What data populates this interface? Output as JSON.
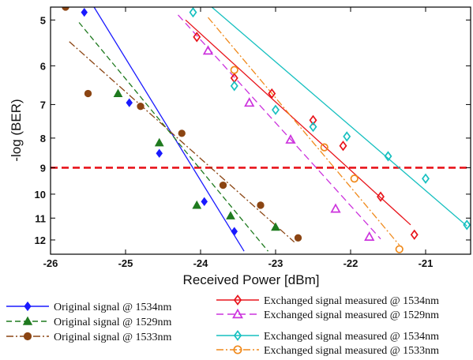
{
  "chart_data": {
    "type": "scatter",
    "xlabel": "Received Power [dBm]",
    "ylabel": "-log (BER)",
    "xlim": [
      -26,
      -20.4
    ],
    "ylim": [
      4.75,
      12.7
    ],
    "y_scale": "log",
    "y_reversed": true,
    "x_ticks": [
      -26,
      -25,
      -24,
      -23,
      -22,
      -21
    ],
    "y_ticks": [
      5,
      6,
      7,
      8,
      9,
      10,
      11,
      12
    ],
    "x_tick_labels": [
      "-26",
      "-25",
      "-24",
      "-23",
      "-22",
      "-21"
    ],
    "y_tick_labels": [
      "5",
      "6",
      "7",
      "8",
      "9",
      "10",
      "11",
      "12"
    ],
    "grid": false,
    "legend_position": "bottom",
    "threshold": {
      "y": 9,
      "color": "#e8141b"
    },
    "series": [
      {
        "name": "Original signal @ 1534nm",
        "marker": "diamond",
        "filled": true,
        "color": "#1a1aff",
        "line_color": "#1a1aff",
        "dash": "",
        "points": [
          [
            -25.55,
            4.85
          ],
          [
            -24.95,
            6.95
          ],
          [
            -24.55,
            8.5
          ],
          [
            -23.95,
            10.3
          ],
          [
            -23.55,
            11.6
          ]
        ],
        "fit": [
          [
            -25.42,
            4.75
          ],
          [
            -23.42,
            12.55
          ]
        ]
      },
      {
        "name": "Original signal @ 1529nm",
        "marker": "triangle",
        "filled": true,
        "color": "#1f7a1f",
        "line_color": "#1f7a1f",
        "dash": "7,4",
        "points": [
          [
            -25.1,
            6.7
          ],
          [
            -24.55,
            8.15
          ],
          [
            -24.05,
            10.45
          ],
          [
            -23.6,
            10.9
          ],
          [
            -23.0,
            11.4
          ]
        ],
        "fit": [
          [
            -25.62,
            5.05
          ],
          [
            -23.1,
            12.55
          ]
        ]
      },
      {
        "name": "Original signal @ 1533nm",
        "marker": "circle",
        "filled": true,
        "color": "#8b4513",
        "line_color": "#8b4513",
        "dash": "9,3,2,3",
        "points": [
          [
            -25.8,
            4.75
          ],
          [
            -25.5,
            6.7
          ],
          [
            -24.8,
            7.05
          ],
          [
            -24.25,
            7.85
          ],
          [
            -23.7,
            9.65
          ],
          [
            -23.2,
            10.45
          ],
          [
            -22.7,
            11.9
          ]
        ],
        "fit": [
          [
            -25.75,
            5.45
          ],
          [
            -22.75,
            12.1
          ]
        ]
      },
      {
        "name": "Exchanged signal measured @ 1534nm",
        "marker": "diamond",
        "filled": false,
        "color": "#e8141b",
        "line_color": "#e8141b",
        "dash": "",
        "points": [
          [
            -24.05,
            5.35
          ],
          [
            -23.55,
            6.3
          ],
          [
            -23.05,
            6.7
          ],
          [
            -22.5,
            7.45
          ],
          [
            -22.1,
            8.25
          ],
          [
            -21.6,
            10.1
          ],
          [
            -21.15,
            11.75
          ]
        ],
        "fit": [
          [
            -24.2,
            5.0
          ],
          [
            -21.2,
            11.3
          ]
        ]
      },
      {
        "name": "Exchanged signal measured @ 1529nm",
        "marker": "triangle",
        "filled": false,
        "color": "#cc33dd",
        "line_color": "#cc33dd",
        "dash": "9,5",
        "points": [
          [
            -23.9,
            5.65
          ],
          [
            -23.35,
            6.95
          ],
          [
            -22.8,
            8.05
          ],
          [
            -22.2,
            10.6
          ],
          [
            -21.75,
            11.85
          ]
        ],
        "fit": [
          [
            -24.3,
            4.9
          ],
          [
            -21.6,
            11.95
          ]
        ]
      },
      {
        "name": "Exchanged signal measured @ 1534nm",
        "marker": "diamond",
        "filled": false,
        "color": "#17c0c0",
        "line_color": "#17c0c0",
        "dash": "",
        "points": [
          [
            -24.1,
            4.85
          ],
          [
            -23.55,
            6.5
          ],
          [
            -23.0,
            7.15
          ],
          [
            -22.5,
            7.65
          ],
          [
            -22.05,
            7.95
          ],
          [
            -21.5,
            8.6
          ],
          [
            -21.0,
            9.4
          ],
          [
            -20.45,
            11.3
          ]
        ],
        "fit": [
          [
            -23.85,
            4.75
          ],
          [
            -20.45,
            11.35
          ]
        ]
      },
      {
        "name": "Exchanged signal measured @ 1533nm",
        "marker": "circle",
        "filled": false,
        "color": "#f08a1c",
        "line_color": "#f08a1c",
        "dash": "9,3,2,3",
        "points": [
          [
            -23.55,
            6.1
          ],
          [
            -22.35,
            8.3
          ],
          [
            -21.95,
            9.4
          ],
          [
            -21.35,
            12.45
          ]
        ],
        "fit": [
          [
            -23.9,
            4.95
          ],
          [
            -21.35,
            12.25
          ]
        ]
      }
    ]
  },
  "legend": {
    "left": [
      "Original signal @ 1534nm",
      "Original signal @ 1529nm",
      "Original signal @ 1533nm"
    ],
    "right_group1": [
      "Exchanged signal measured @ 1534nm",
      "Exchanged signal measured @ 1529nm"
    ],
    "right_group2": [
      "Exchanged signal measured @ 1534nm",
      "Exchanged signal measured @ 1533nm"
    ]
  }
}
